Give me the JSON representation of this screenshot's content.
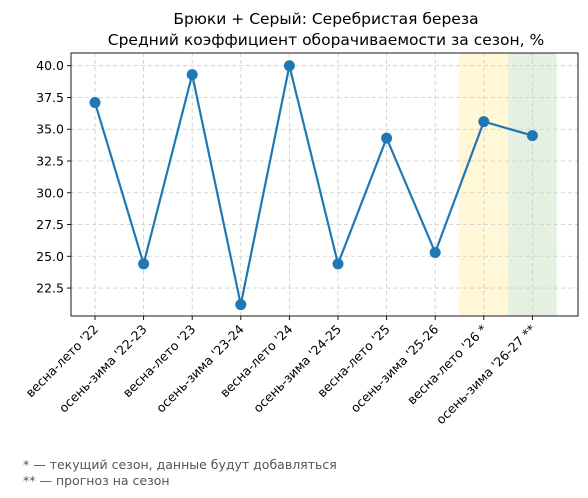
{
  "chart_data": {
    "type": "line",
    "title": "Брюки + Серый: Серебристая береза",
    "subtitle": "Средний коэффициент оборачиваемости за сезон, %",
    "xlabel": "",
    "ylabel": "",
    "categories": [
      "весна-лето '22",
      "осень-зима '22-23",
      "весна-лето '23",
      "осень-зима '23-24",
      "весна-лето '24",
      "осень-зима '24-25",
      "весна-лето '25",
      "осень-зима '25-26",
      "весна-лето '26 *",
      "осень-зима '26-27 **"
    ],
    "series": [
      {
        "values": [
          37.1,
          24.4,
          39.3,
          21.2,
          40.0,
          24.4,
          34.3,
          25.3,
          35.6,
          34.5
        ]
      }
    ],
    "ylim": [
      20.3,
      41.0
    ],
    "yticks": [
      22.5,
      25.0,
      27.5,
      30.0,
      32.5,
      35.0,
      37.5,
      40.0
    ],
    "ytick_labels": [
      "22.5",
      "25.0",
      "27.5",
      "30.0",
      "32.5",
      "35.0",
      "37.5",
      "40.0"
    ],
    "grid": true,
    "line_color": "#1f77b4",
    "highlights": [
      {
        "category_index": 8,
        "color": "#fff7d6",
        "meaning": "current season"
      },
      {
        "category_index": 9,
        "color": "#e5f1e0",
        "meaning": "forecast"
      }
    ]
  },
  "footnotes": {
    "current": "* — текущий сезон, данные будут добавляться",
    "forecast": "** — прогноз на сезон"
  }
}
